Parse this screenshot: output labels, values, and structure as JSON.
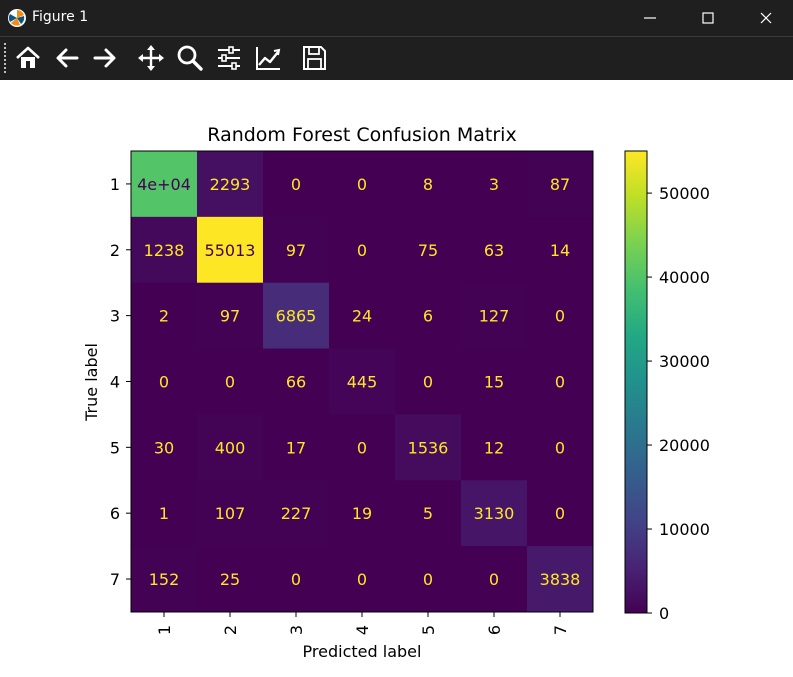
{
  "window": {
    "title": "Figure 1"
  },
  "toolbar": {
    "items": [
      {
        "name": "home",
        "icon": "home-icon"
      },
      {
        "name": "back",
        "icon": "arrow-left-icon"
      },
      {
        "name": "forward",
        "icon": "arrow-right-icon"
      },
      {
        "name": "pan",
        "icon": "move-icon"
      },
      {
        "name": "zoom",
        "icon": "magnifier-icon"
      },
      {
        "name": "subplots",
        "icon": "sliders-icon"
      },
      {
        "name": "edit-axis",
        "icon": "line-chart-icon"
      },
      {
        "name": "save",
        "icon": "floppy-disk-icon"
      }
    ]
  },
  "chart_data": {
    "type": "heatmap",
    "title": "Random Forest Confusion Matrix",
    "xlabel": "Predicted label",
    "ylabel": "True label",
    "x_categories": [
      "1",
      "2",
      "3",
      "4",
      "5",
      "6",
      "7"
    ],
    "y_categories": [
      "1",
      "2",
      "3",
      "4",
      "5",
      "6",
      "7"
    ],
    "values": [
      [
        40000,
        2293,
        0,
        0,
        8,
        3,
        87
      ],
      [
        1238,
        55013,
        97,
        0,
        75,
        63,
        14
      ],
      [
        2,
        97,
        6865,
        24,
        6,
        127,
        0
      ],
      [
        0,
        0,
        66,
        445,
        0,
        15,
        0
      ],
      [
        30,
        400,
        17,
        0,
        1536,
        12,
        0
      ],
      [
        1,
        107,
        227,
        19,
        5,
        3130,
        0
      ],
      [
        152,
        25,
        0,
        0,
        0,
        0,
        3838
      ]
    ],
    "cell_labels": [
      [
        "4e+04",
        "2293",
        "0",
        "0",
        "8",
        "3",
        "87"
      ],
      [
        "1238",
        "55013",
        "97",
        "0",
        "75",
        "63",
        "14"
      ],
      [
        "2",
        "97",
        "6865",
        "24",
        "6",
        "127",
        "0"
      ],
      [
        "0",
        "0",
        "66",
        "445",
        "0",
        "15",
        "0"
      ],
      [
        "30",
        "400",
        "17",
        "0",
        "1536",
        "12",
        "0"
      ],
      [
        "1",
        "107",
        "227",
        "19",
        "5",
        "3130",
        "0"
      ],
      [
        "152",
        "25",
        "0",
        "0",
        "0",
        "0",
        "3838"
      ]
    ],
    "colormap": "viridis",
    "colorbar": {
      "range": [
        0,
        55013
      ],
      "ticks": [
        0,
        10000,
        20000,
        30000,
        40000,
        50000
      ],
      "tick_labels": [
        "0",
        "10000",
        "20000",
        "30000",
        "40000",
        "50000"
      ]
    },
    "text_color_dark": "#440154",
    "text_color_light": "#fde725",
    "grid": false
  }
}
